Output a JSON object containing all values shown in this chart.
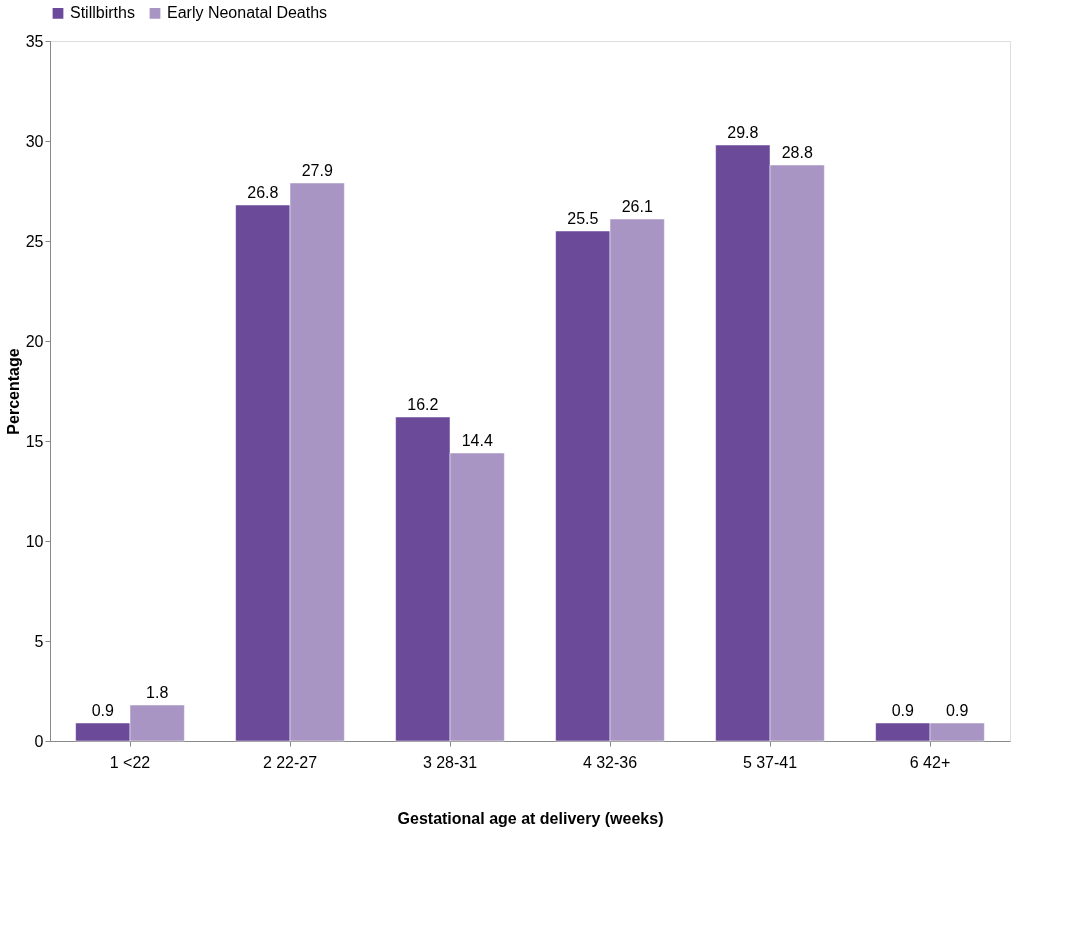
{
  "chart_data": {
    "type": "bar",
    "xlabel": "Gestational age at delivery (weeks)",
    "ylabel": "Percentage",
    "categories": [
      "1 <22",
      "2 22-27",
      "3 28-31",
      "4 32-36",
      "5 37-41",
      "6 42+"
    ],
    "series": [
      {
        "name": "Stillbirths",
        "color": "#6b4a9a",
        "values": [
          0.9,
          26.8,
          16.2,
          25.5,
          29.8,
          0.9
        ]
      },
      {
        "name": "Early Neonatal Deaths",
        "color": "#a895c4",
        "values": [
          1.8,
          27.9,
          14.4,
          26.1,
          28.8,
          0.9
        ]
      }
    ],
    "ylim": [
      0,
      35
    ],
    "yticks": [
      0,
      5,
      10,
      15,
      20,
      25,
      30,
      35
    ],
    "grid": false,
    "legend": "top",
    "data_labels": true
  }
}
